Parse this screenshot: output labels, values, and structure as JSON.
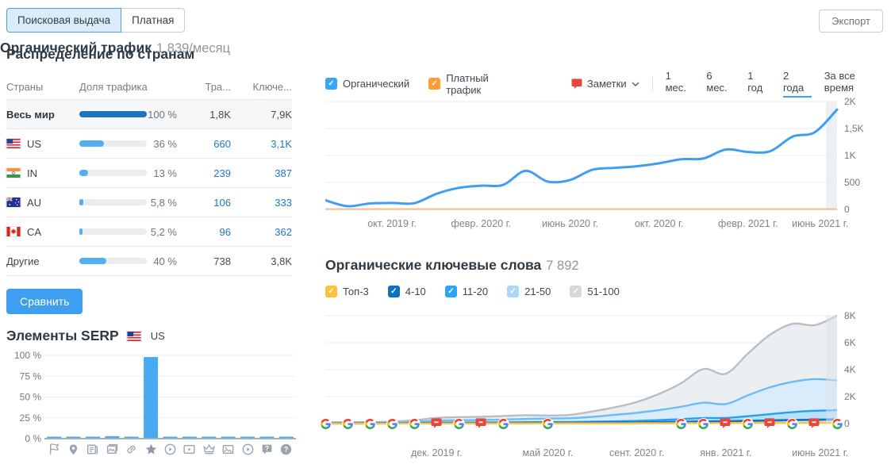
{
  "tabs": {
    "items": [
      {
        "label": "Поисковая выдача",
        "active": true
      },
      {
        "label": "Платная",
        "active": false
      }
    ]
  },
  "export_label": "Экспорт",
  "colors": {
    "accent_blue": "#3e9ef0",
    "link_blue": "#2178c2",
    "organic_line": "#3f9ef2",
    "paid_line": "#f3c09b",
    "world_bar": "#1b75bc",
    "country_bar": "#54aef2",
    "note_red": "#e8453c",
    "range_underline": "#38a7f5"
  },
  "countries": {
    "title": "Распределение по странам",
    "headers": [
      "Страны",
      "Доля трафика",
      "Тра...",
      "Ключе..."
    ],
    "rows": [
      {
        "name": "Весь мир",
        "flag": "",
        "share": 100,
        "share_label": "100 %",
        "traffic": "1,8K",
        "keywords": "7,9K",
        "world": true,
        "link": false
      },
      {
        "name": "US",
        "flag": "us",
        "share": 36,
        "share_label": "36 %",
        "traffic": "660",
        "keywords": "3,1K",
        "world": false,
        "link": true
      },
      {
        "name": "IN",
        "flag": "in",
        "share": 13,
        "share_label": "13 %",
        "traffic": "239",
        "keywords": "387",
        "world": false,
        "link": true
      },
      {
        "name": "AU",
        "flag": "au",
        "share": 5.8,
        "share_label": "5,8 %",
        "traffic": "106",
        "keywords": "333",
        "world": false,
        "link": true
      },
      {
        "name": "CA",
        "flag": "ca",
        "share": 5.2,
        "share_label": "5,2 %",
        "traffic": "96",
        "keywords": "362",
        "world": false,
        "link": true
      },
      {
        "name": "Другие",
        "flag": "",
        "share": 40,
        "share_label": "40 %",
        "traffic": "738",
        "keywords": "3,8K",
        "world": false,
        "link": false
      }
    ],
    "compare_label": "Сравнить"
  },
  "serp": {
    "title": "Элементы SERP",
    "flag_label": "US",
    "chart_data": {
      "type": "bar",
      "categories": [
        "featured-snippet",
        "local-pack",
        "news",
        "images",
        "sitelinks",
        "reviews",
        "video",
        "featured-video",
        "knowledge-panel",
        "image-pack",
        "video-carousel",
        "faq",
        "people-also-ask"
      ],
      "values": [
        2,
        2,
        2,
        3,
        2,
        98,
        2,
        2,
        2,
        2,
        2,
        2,
        2
      ],
      "y_ticks": [
        "100 %",
        "75 %",
        "50 %",
        "25 %",
        "0 %"
      ],
      "ylim": [
        0,
        100
      ],
      "bar_color": "#49a9f1"
    }
  },
  "organic_traffic": {
    "title": "Органический трафик",
    "value": "1 839/месяц",
    "legend": [
      {
        "label": "Органический",
        "color": "#38a6f3",
        "checked": true
      },
      {
        "label": "Платный трафик",
        "color": "#ff9d33",
        "checked": true
      }
    ],
    "notes_label": "Заметки",
    "ranges": [
      "1 мес.",
      "6 мес.",
      "1 год",
      "2 года",
      "За все время"
    ],
    "active_range": "2 года",
    "chart_data": {
      "type": "line",
      "x_labels": [
        "окт. 2019 г.",
        "февр. 2020 г.",
        "июнь 2020 г.",
        "окт. 2020 г.",
        "февр. 2021 г.",
        "июнь 2021 г."
      ],
      "x_label_indices": [
        3,
        7,
        11,
        15,
        19,
        23
      ],
      "y_ticks": [
        {
          "v": 2000,
          "label": "2K"
        },
        {
          "v": 1500,
          "label": "1,5K"
        },
        {
          "v": 1000,
          "label": "1K"
        },
        {
          "v": 500,
          "label": "500"
        },
        {
          "v": 0,
          "label": "0"
        }
      ],
      "ylim": [
        0,
        2000
      ],
      "series": [
        {
          "name": "Органический",
          "color": "#3f9ef2",
          "values": [
            170,
            60,
            110,
            120,
            115,
            290,
            400,
            440,
            455,
            715,
            515,
            545,
            735,
            770,
            800,
            855,
            930,
            945,
            1110,
            1065,
            1080,
            1350,
            1430,
            1850
          ]
        },
        {
          "name": "Платный трафик",
          "color": "#f3c09b",
          "values": [
            5,
            5,
            5,
            5,
            5,
            5,
            5,
            5,
            5,
            5,
            5,
            5,
            5,
            5,
            5,
            5,
            5,
            5,
            5,
            5,
            5,
            5,
            5,
            5
          ]
        }
      ]
    }
  },
  "organic_keywords": {
    "title": "Органические ключевые слова",
    "value": "7 892",
    "legend": [
      {
        "label": "Топ-3",
        "color": "#fdc13c",
        "checked": true
      },
      {
        "label": "4-10",
        "color": "#1070c4",
        "checked": true
      },
      {
        "label": "11-20",
        "color": "#2ba6f7",
        "checked": true
      },
      {
        "label": "21-50",
        "color": "#a8d7f7",
        "checked": true
      },
      {
        "label": "51-100",
        "color": "#d3d9dd",
        "checked": true
      }
    ],
    "chart_data": {
      "type": "area-stacked",
      "x_labels": [
        "дек. 2019 г.",
        "май 2020 г.",
        "сент. 2020 г.",
        "янв. 2021 г.",
        "июнь 2021 г."
      ],
      "x_label_indices": [
        5,
        10,
        14,
        18,
        23
      ],
      "y_ticks": [
        {
          "v": 8000,
          "label": "8K"
        },
        {
          "v": 6000,
          "label": "6K"
        },
        {
          "v": 4000,
          "label": "4K"
        },
        {
          "v": 2000,
          "label": "2K"
        },
        {
          "v": 0,
          "label": "0"
        }
      ],
      "ylim": [
        0,
        8000
      ],
      "series": [
        {
          "name": "Топ-3",
          "line": "#fcc341",
          "fill": "#ffffff",
          "values": [
            5,
            5,
            5,
            8,
            10,
            12,
            12,
            12,
            15,
            15,
            18,
            18,
            20,
            20,
            22,
            25,
            30,
            35,
            40,
            45,
            50,
            60,
            70,
            80
          ]
        },
        {
          "name": "4-10",
          "line": "#1573c4",
          "fill": "#eaf4fc",
          "values": [
            10,
            10,
            13,
            12,
            15,
            28,
            33,
            33,
            35,
            40,
            42,
            42,
            50,
            60,
            68,
            85,
            100,
            115,
            130,
            155,
            180,
            200,
            210,
            230
          ]
        },
        {
          "name": "11-20",
          "line": "#28a0f0",
          "fill": "#b7e0fa",
          "values": [
            10,
            10,
            12,
            15,
            20,
            30,
            35,
            35,
            40,
            45,
            50,
            55,
            70,
            90,
            110,
            150,
            200,
            260,
            250,
            350,
            470,
            590,
            670,
            690
          ]
        },
        {
          "name": "21-50",
          "line": "#6fbbf3",
          "fill": "#d8ecfb",
          "values": [
            25,
            30,
            30,
            45,
            75,
            150,
            170,
            180,
            210,
            240,
            270,
            285,
            360,
            480,
            600,
            740,
            920,
            1140,
            1030,
            1550,
            2000,
            2250,
            2350,
            2200
          ]
        },
        {
          "name": "51-100",
          "line": "#b7bec5",
          "fill": "#eceff2",
          "values": [
            40,
            45,
            50,
            70,
            130,
            200,
            230,
            240,
            260,
            280,
            220,
            250,
            400,
            550,
            800,
            1200,
            1750,
            2500,
            2250,
            3100,
            3900,
            4300,
            4000,
            4800
          ]
        }
      ],
      "markers": [
        {
          "i": 0,
          "t": "google"
        },
        {
          "i": 1,
          "t": "google"
        },
        {
          "i": 2,
          "t": "google"
        },
        {
          "i": 3,
          "t": "google"
        },
        {
          "i": 4,
          "t": "google"
        },
        {
          "i": 5,
          "t": "note"
        },
        {
          "i": 6,
          "t": "google"
        },
        {
          "i": 7,
          "t": "note"
        },
        {
          "i": 8,
          "t": "google"
        },
        {
          "i": 10,
          "t": "google"
        },
        {
          "i": 16,
          "t": "google"
        },
        {
          "i": 17,
          "t": "google"
        },
        {
          "i": 18,
          "t": "note"
        },
        {
          "i": 19,
          "t": "google"
        },
        {
          "i": 20,
          "t": "note"
        },
        {
          "i": 21,
          "t": "google"
        },
        {
          "i": 22,
          "t": "note"
        },
        {
          "i": 23,
          "t": "google"
        }
      ]
    }
  }
}
